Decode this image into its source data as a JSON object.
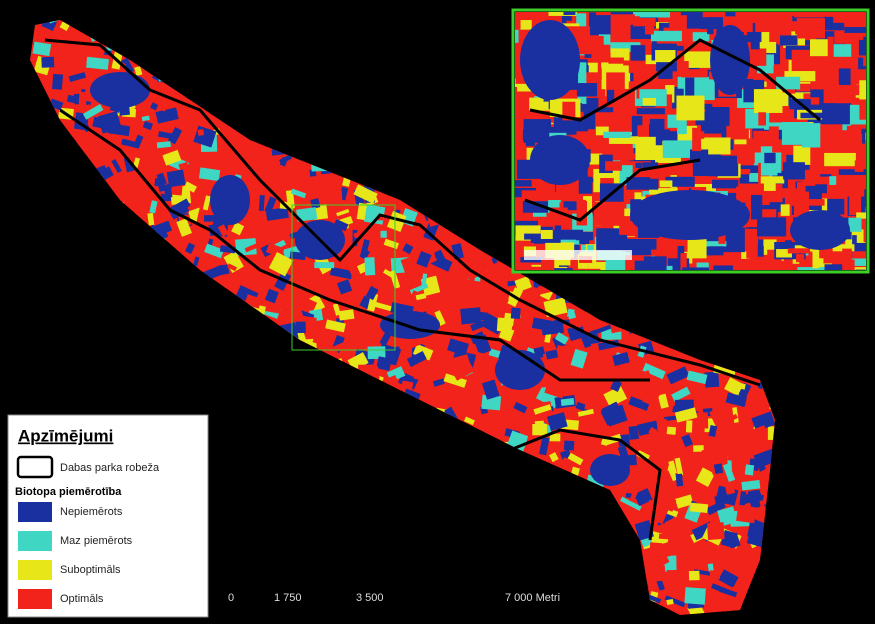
{
  "legend": {
    "title": "Apzīmējumi",
    "boundary": {
      "label": "Dabas parka robeža"
    },
    "subtitle": "Biotopa piemērotība",
    "items": [
      {
        "label": "Nepiemērots",
        "color": "#1a2fa0"
      },
      {
        "label": "Maz piemērots",
        "color": "#3fd6c4"
      },
      {
        "label": "Suboptimāls",
        "color": "#e6e619"
      },
      {
        "label": "Optimāls",
        "color": "#f2231a"
      }
    ]
  },
  "scale_bar": {
    "labels": [
      "0",
      "1 750",
      "3 500",
      "7 000 Metri"
    ]
  }
}
